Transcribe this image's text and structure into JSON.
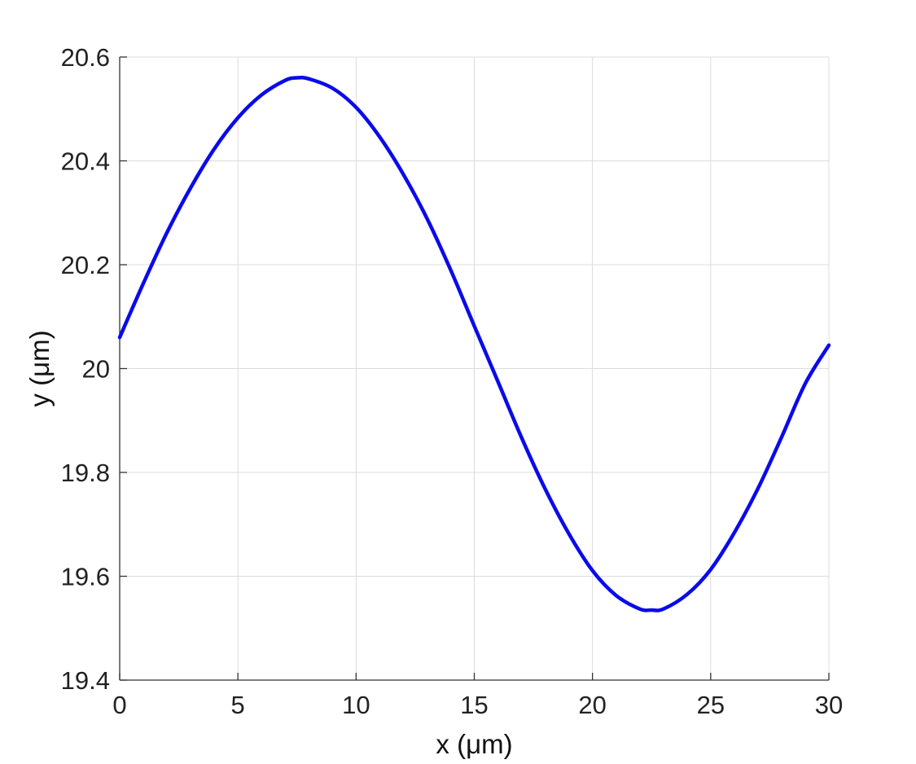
{
  "chart_data": {
    "type": "line",
    "title": "",
    "xlabel": "x (μm)",
    "ylabel": "y (μm)",
    "xlim": [
      0,
      30
    ],
    "ylim": [
      19.4,
      20.6
    ],
    "xticks": [
      0,
      5,
      10,
      15,
      20,
      25,
      30
    ],
    "yticks": [
      19.4,
      19.6,
      19.8,
      20,
      20.2,
      20.4,
      20.6
    ],
    "xtick_labels": [
      "0",
      "5",
      "10",
      "15",
      "20",
      "25",
      "30"
    ],
    "ytick_labels": [
      "19.4",
      "19.6",
      "19.8",
      "20",
      "20.2",
      "20.4",
      "20.6"
    ],
    "grid": true,
    "legend": "none",
    "series": [
      {
        "color": "#0a0aeb",
        "x": [
          0,
          1,
          2,
          3,
          4,
          5,
          6,
          7,
          7.5,
          8,
          9,
          10,
          11,
          12,
          13,
          14,
          15,
          16,
          17,
          18,
          19,
          20,
          21,
          22,
          22.5,
          23,
          24,
          25,
          26,
          27,
          28,
          29,
          30
        ],
        "y": [
          20.06,
          20.164,
          20.262,
          20.348,
          20.423,
          20.483,
          20.527,
          20.555,
          20.56,
          20.558,
          20.54,
          20.503,
          20.446,
          20.374,
          20.289,
          20.19,
          20.082,
          19.975,
          19.867,
          19.768,
          19.682,
          19.611,
          19.563,
          19.537,
          19.535,
          19.537,
          19.565,
          19.613,
          19.684,
          19.769,
          19.868,
          19.971,
          20.045
        ]
      }
    ]
  }
}
